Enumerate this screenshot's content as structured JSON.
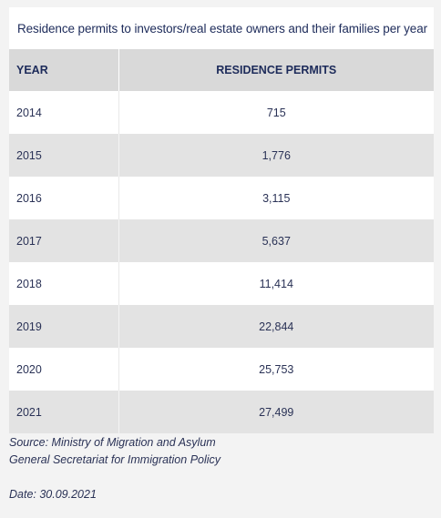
{
  "chart_data": {
    "type": "table",
    "title": "Residence permits to investors/real estate owners and their families per year",
    "columns": [
      "YEAR",
      "RESIDENCE PERMITS"
    ],
    "rows": [
      {
        "year": "2014",
        "permits": "715"
      },
      {
        "year": "2015",
        "permits": "1,776"
      },
      {
        "year": "2016",
        "permits": "3,115"
      },
      {
        "year": "2017",
        "permits": "5,637"
      },
      {
        "year": "2018",
        "permits": "11,414"
      },
      {
        "year": "2019",
        "permits": "22,844"
      },
      {
        "year": "2020",
        "permits": "25,753"
      },
      {
        "year": "2021",
        "permits": "27,499"
      }
    ]
  },
  "notes": {
    "source_line1": "Source: Ministry of Migration and Asylum",
    "source_line2": "General Secretariat for Immigration Policy",
    "date": "Date: 30.09.2021"
  },
  "colors": {
    "header_bg": "#d9d9d9",
    "stripe_bg": "#e3e3e3",
    "text": "#1d2b5a"
  }
}
